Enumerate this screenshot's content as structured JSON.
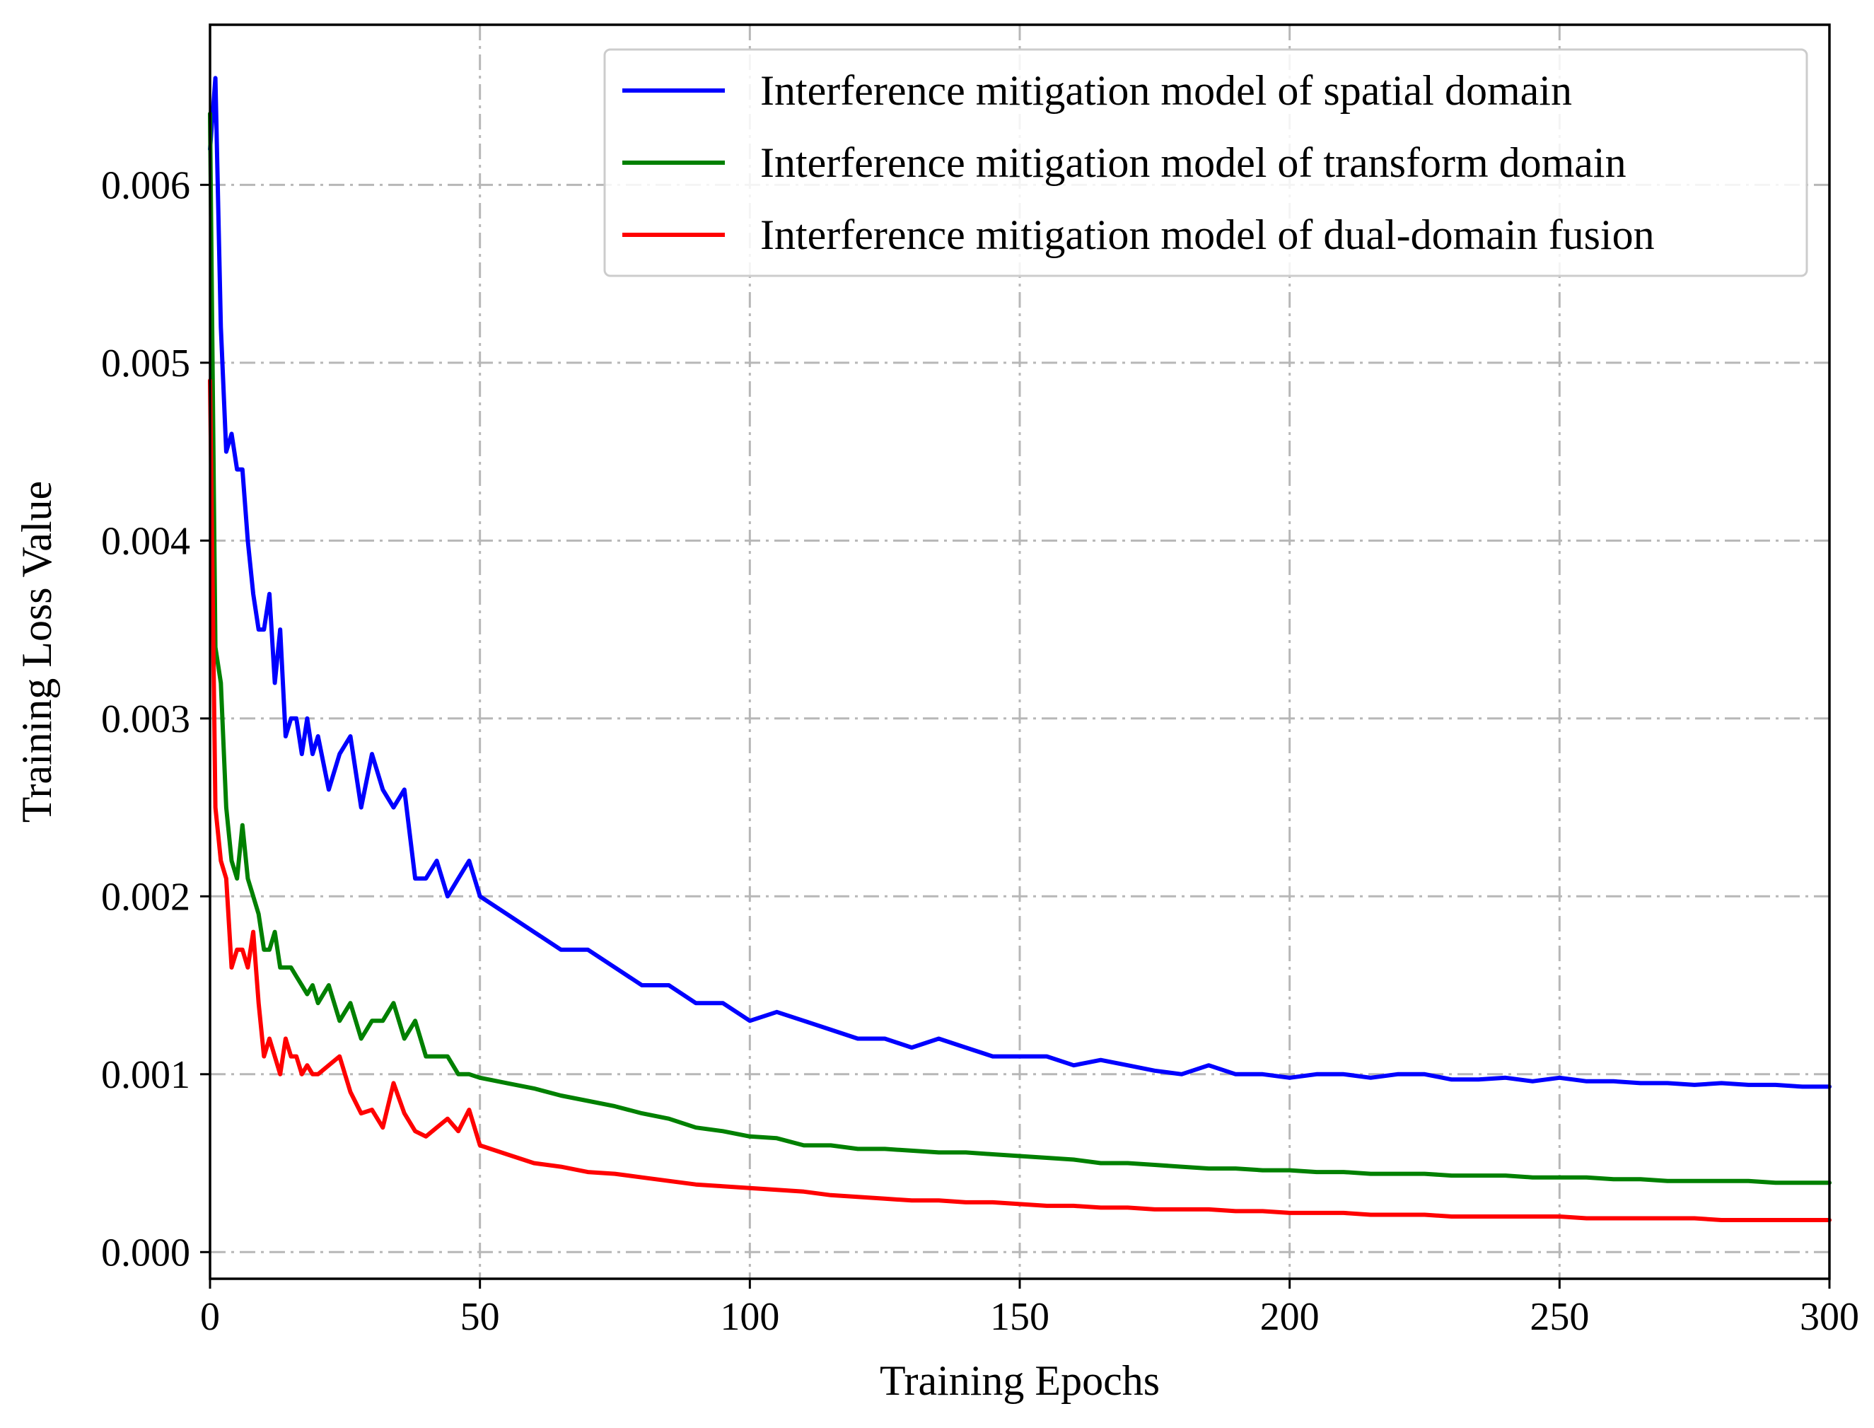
{
  "chart_data": {
    "type": "line",
    "title": "",
    "xlabel": "Training Epochs",
    "ylabel": "Training Loss Value",
    "xlim": [
      0,
      300
    ],
    "ylim": [
      -0.00015,
      0.0069
    ],
    "xticks": [
      0,
      50,
      100,
      150,
      200,
      250,
      300
    ],
    "xtick_labels": [
      "0",
      "50",
      "100",
      "150",
      "200",
      "250",
      "300"
    ],
    "yticks": [
      0.0,
      0.001,
      0.002,
      0.003,
      0.004,
      0.005,
      0.006
    ],
    "ytick_labels": [
      "0.000",
      "0.001",
      "0.002",
      "0.003",
      "0.004",
      "0.005",
      "0.006"
    ],
    "grid": true,
    "legend_position": "top-right",
    "series": [
      {
        "name": "Interference mitigation model of spatial domain",
        "color": "#0000ff",
        "x": [
          0,
          1,
          2,
          3,
          4,
          5,
          6,
          7,
          8,
          9,
          10,
          11,
          12,
          13,
          14,
          15,
          16,
          17,
          18,
          19,
          20,
          22,
          24,
          26,
          28,
          30,
          32,
          34,
          36,
          38,
          40,
          42,
          44,
          46,
          48,
          50,
          55,
          60,
          65,
          70,
          75,
          80,
          85,
          90,
          95,
          100,
          105,
          110,
          115,
          120,
          125,
          130,
          135,
          140,
          145,
          150,
          155,
          160,
          165,
          170,
          175,
          180,
          185,
          190,
          195,
          200,
          205,
          210,
          215,
          220,
          225,
          230,
          235,
          240,
          245,
          250,
          255,
          260,
          265,
          270,
          275,
          280,
          285,
          290,
          295,
          300
        ],
        "values": [
          0.0062,
          0.0066,
          0.0052,
          0.0045,
          0.0046,
          0.0044,
          0.0044,
          0.004,
          0.0037,
          0.0035,
          0.0035,
          0.0037,
          0.0032,
          0.0035,
          0.0029,
          0.003,
          0.003,
          0.0028,
          0.003,
          0.0028,
          0.0029,
          0.0026,
          0.0028,
          0.0029,
          0.0025,
          0.0028,
          0.0026,
          0.0025,
          0.0026,
          0.0021,
          0.0021,
          0.0022,
          0.002,
          0.0021,
          0.0022,
          0.002,
          0.0019,
          0.0018,
          0.0017,
          0.0017,
          0.0016,
          0.0015,
          0.0015,
          0.0014,
          0.0014,
          0.0013,
          0.00135,
          0.0013,
          0.00125,
          0.0012,
          0.0012,
          0.00115,
          0.0012,
          0.00115,
          0.0011,
          0.0011,
          0.0011,
          0.00105,
          0.00108,
          0.00105,
          0.00102,
          0.001,
          0.00105,
          0.001,
          0.001,
          0.00098,
          0.001,
          0.001,
          0.00098,
          0.001,
          0.001,
          0.00097,
          0.00097,
          0.00098,
          0.00096,
          0.00098,
          0.00096,
          0.00096,
          0.00095,
          0.00095,
          0.00094,
          0.00095,
          0.00094,
          0.00094,
          0.00093,
          0.00093
        ]
      },
      {
        "name": "Interference mitigation model of transform domain",
        "color": "#008000",
        "x": [
          0,
          1,
          2,
          3,
          4,
          5,
          6,
          7,
          8,
          9,
          10,
          11,
          12,
          13,
          14,
          15,
          16,
          17,
          18,
          19,
          20,
          22,
          24,
          26,
          28,
          30,
          32,
          34,
          36,
          38,
          40,
          42,
          44,
          46,
          48,
          50,
          55,
          60,
          65,
          70,
          75,
          80,
          85,
          90,
          95,
          100,
          105,
          110,
          115,
          120,
          125,
          130,
          135,
          140,
          145,
          150,
          155,
          160,
          165,
          170,
          175,
          180,
          185,
          190,
          195,
          200,
          205,
          210,
          215,
          220,
          225,
          230,
          235,
          240,
          245,
          250,
          255,
          260,
          265,
          270,
          275,
          280,
          285,
          290,
          295,
          300
        ],
        "values": [
          0.0064,
          0.0034,
          0.0032,
          0.0025,
          0.0022,
          0.0021,
          0.0024,
          0.0021,
          0.002,
          0.0019,
          0.0017,
          0.0017,
          0.0018,
          0.0016,
          0.0016,
          0.0016,
          0.00155,
          0.0015,
          0.00145,
          0.0015,
          0.0014,
          0.0015,
          0.0013,
          0.0014,
          0.0012,
          0.0013,
          0.0013,
          0.0014,
          0.0012,
          0.0013,
          0.0011,
          0.0011,
          0.0011,
          0.001,
          0.001,
          0.00098,
          0.00095,
          0.00092,
          0.00088,
          0.00085,
          0.00082,
          0.00078,
          0.00075,
          0.0007,
          0.00068,
          0.00065,
          0.00064,
          0.0006,
          0.0006,
          0.00058,
          0.00058,
          0.00057,
          0.00056,
          0.00056,
          0.00055,
          0.00054,
          0.00053,
          0.00052,
          0.0005,
          0.0005,
          0.00049,
          0.00048,
          0.00047,
          0.00047,
          0.00046,
          0.00046,
          0.00045,
          0.00045,
          0.00044,
          0.00044,
          0.00044,
          0.00043,
          0.00043,
          0.00043,
          0.00042,
          0.00042,
          0.00042,
          0.00041,
          0.00041,
          0.0004,
          0.0004,
          0.0004,
          0.0004,
          0.00039,
          0.00039,
          0.00039
        ]
      },
      {
        "name": "Interference mitigation model of dual-domain fusion",
        "color": "#ff0000",
        "x": [
          0,
          1,
          2,
          3,
          4,
          5,
          6,
          7,
          8,
          9,
          10,
          11,
          12,
          13,
          14,
          15,
          16,
          17,
          18,
          19,
          20,
          22,
          24,
          26,
          28,
          30,
          32,
          34,
          36,
          38,
          40,
          42,
          44,
          46,
          48,
          50,
          55,
          60,
          65,
          70,
          75,
          80,
          85,
          90,
          95,
          100,
          105,
          110,
          115,
          120,
          125,
          130,
          135,
          140,
          145,
          150,
          155,
          160,
          165,
          170,
          175,
          180,
          185,
          190,
          195,
          200,
          205,
          210,
          215,
          220,
          225,
          230,
          235,
          240,
          245,
          250,
          255,
          260,
          265,
          270,
          275,
          280,
          285,
          290,
          295,
          300
        ],
        "values": [
          0.0049,
          0.0025,
          0.0022,
          0.0021,
          0.0016,
          0.0017,
          0.0017,
          0.0016,
          0.0018,
          0.0014,
          0.0011,
          0.0012,
          0.0011,
          0.001,
          0.0012,
          0.0011,
          0.0011,
          0.001,
          0.00105,
          0.001,
          0.001,
          0.00105,
          0.0011,
          0.0009,
          0.00078,
          0.0008,
          0.0007,
          0.00095,
          0.00078,
          0.00068,
          0.00065,
          0.0007,
          0.00075,
          0.00068,
          0.0008,
          0.0006,
          0.00055,
          0.0005,
          0.00048,
          0.00045,
          0.00044,
          0.00042,
          0.0004,
          0.00038,
          0.00037,
          0.00036,
          0.00035,
          0.00034,
          0.00032,
          0.00031,
          0.0003,
          0.00029,
          0.00029,
          0.00028,
          0.00028,
          0.00027,
          0.00026,
          0.00026,
          0.00025,
          0.00025,
          0.00024,
          0.00024,
          0.00024,
          0.00023,
          0.00023,
          0.00022,
          0.00022,
          0.00022,
          0.00021,
          0.00021,
          0.00021,
          0.0002,
          0.0002,
          0.0002,
          0.0002,
          0.0002,
          0.00019,
          0.00019,
          0.00019,
          0.00019,
          0.00019,
          0.00018,
          0.00018,
          0.00018,
          0.00018,
          0.00018
        ]
      }
    ]
  }
}
